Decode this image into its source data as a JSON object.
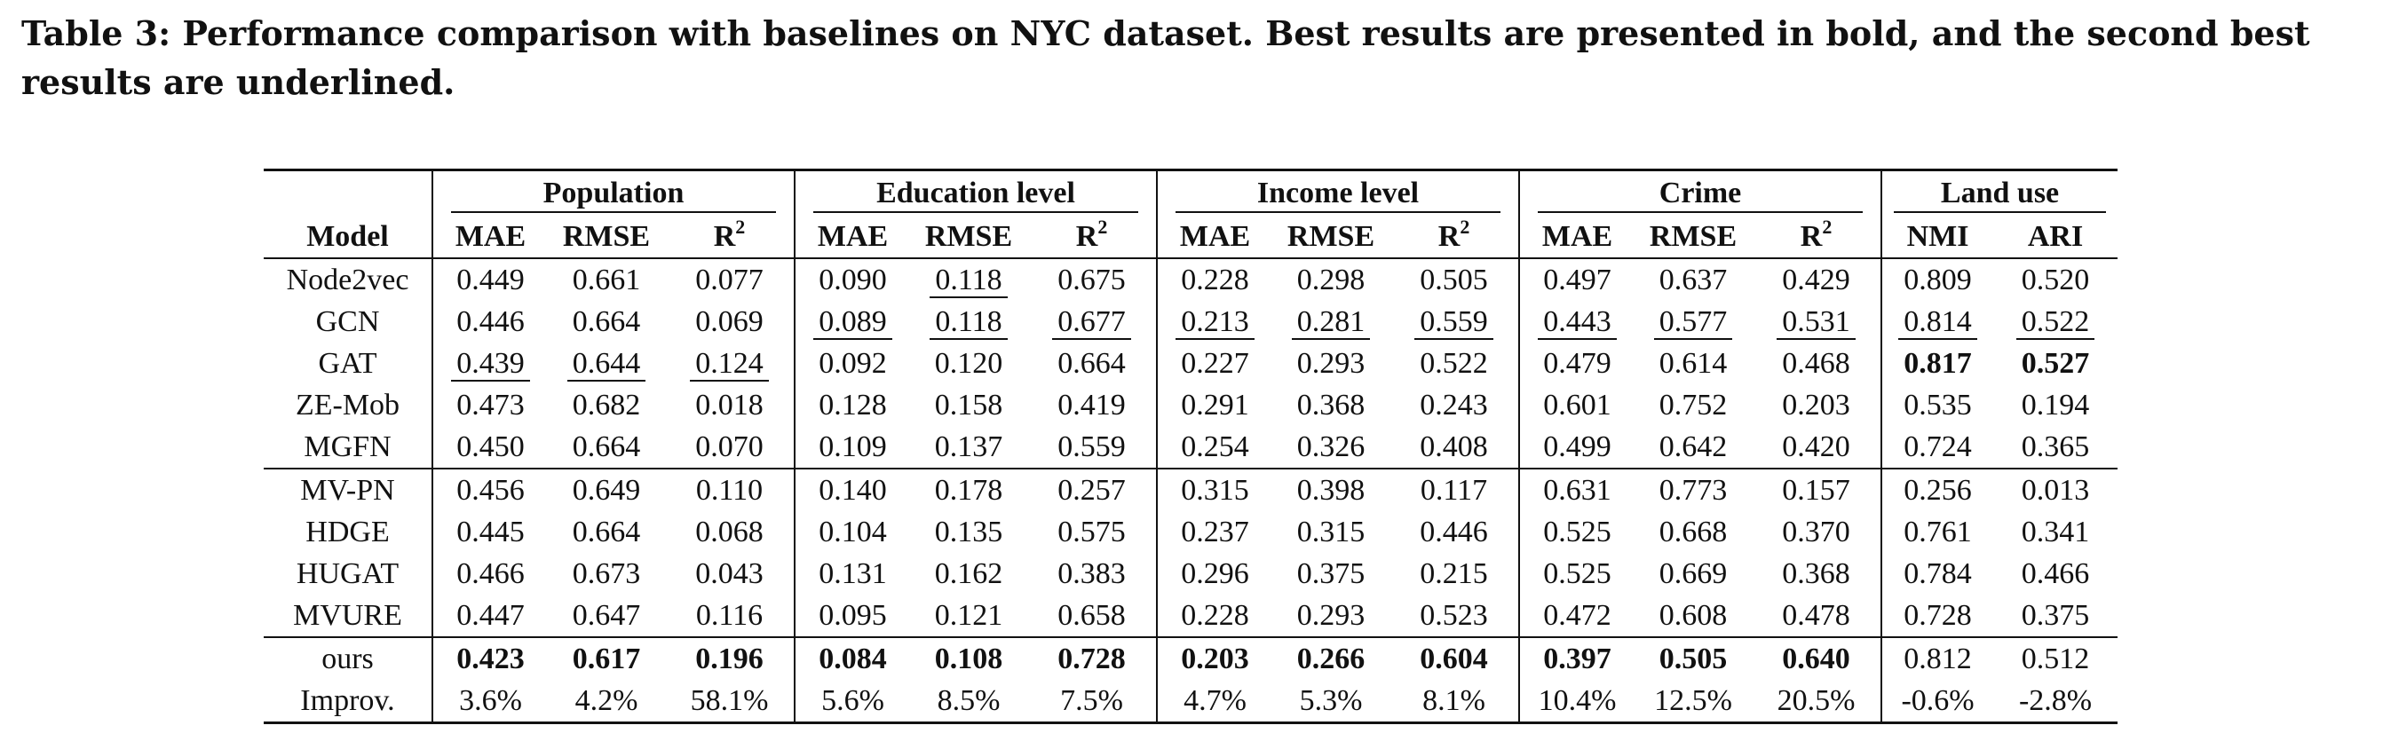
{
  "caption": "Table 3: Performance comparison with baselines on NYC dataset. Best results are presented in bold, and the second best results are underlined.",
  "table": {
    "model_header": "Model",
    "groups": [
      {
        "name": "Population",
        "metrics": [
          "MAE",
          "RMSE",
          "R"
        ]
      },
      {
        "name": "Education level",
        "metrics": [
          "MAE",
          "RMSE",
          "R"
        ]
      },
      {
        "name": "Income level",
        "metrics": [
          "MAE",
          "RMSE",
          "R"
        ]
      },
      {
        "name": "Crime",
        "metrics": [
          "MAE",
          "RMSE",
          "R"
        ]
      },
      {
        "name": "Land use",
        "metrics": [
          "NMI",
          "ARI"
        ]
      }
    ],
    "r_superscript": "2",
    "rows": [
      {
        "model": "Node2vec",
        "values": [
          "0.449",
          "0.661",
          "0.077",
          "0.090",
          "0.118",
          "0.675",
          "0.228",
          "0.298",
          "0.505",
          "0.497",
          "0.637",
          "0.429",
          "0.809",
          "0.520"
        ],
        "bold": [],
        "underline": [
          4
        ]
      },
      {
        "model": "GCN",
        "values": [
          "0.446",
          "0.664",
          "0.069",
          "0.089",
          "0.118",
          "0.677",
          "0.213",
          "0.281",
          "0.559",
          "0.443",
          "0.577",
          "0.531",
          "0.814",
          "0.522"
        ],
        "bold": [],
        "underline": [
          3,
          4,
          5,
          6,
          7,
          8,
          9,
          10,
          11,
          12,
          13
        ]
      },
      {
        "model": "GAT",
        "values": [
          "0.439",
          "0.644",
          "0.124",
          "0.092",
          "0.120",
          "0.664",
          "0.227",
          "0.293",
          "0.522",
          "0.479",
          "0.614",
          "0.468",
          "0.817",
          "0.527"
        ],
        "bold": [
          12,
          13
        ],
        "underline": [
          0,
          1,
          2
        ]
      },
      {
        "model": "ZE-Mob",
        "values": [
          "0.473",
          "0.682",
          "0.018",
          "0.128",
          "0.158",
          "0.419",
          "0.291",
          "0.368",
          "0.243",
          "0.601",
          "0.752",
          "0.203",
          "0.535",
          "0.194"
        ],
        "bold": [],
        "underline": []
      },
      {
        "model": "MGFN",
        "values": [
          "0.450",
          "0.664",
          "0.070",
          "0.109",
          "0.137",
          "0.559",
          "0.254",
          "0.326",
          "0.408",
          "0.499",
          "0.642",
          "0.420",
          "0.724",
          "0.365"
        ],
        "bold": [],
        "underline": []
      },
      {
        "model": "MV-PN",
        "values": [
          "0.456",
          "0.649",
          "0.110",
          "0.140",
          "0.178",
          "0.257",
          "0.315",
          "0.398",
          "0.117",
          "0.631",
          "0.773",
          "0.157",
          "0.256",
          "0.013"
        ],
        "bold": [],
        "underline": []
      },
      {
        "model": "HDGE",
        "values": [
          "0.445",
          "0.664",
          "0.068",
          "0.104",
          "0.135",
          "0.575",
          "0.237",
          "0.315",
          "0.446",
          "0.525",
          "0.668",
          "0.370",
          "0.761",
          "0.341"
        ],
        "bold": [],
        "underline": []
      },
      {
        "model": "HUGAT",
        "values": [
          "0.466",
          "0.673",
          "0.043",
          "0.131",
          "0.162",
          "0.383",
          "0.296",
          "0.375",
          "0.215",
          "0.525",
          "0.669",
          "0.368",
          "0.784",
          "0.466"
        ],
        "bold": [],
        "underline": []
      },
      {
        "model": "MVURE",
        "values": [
          "0.447",
          "0.647",
          "0.116",
          "0.095",
          "0.121",
          "0.658",
          "0.228",
          "0.293",
          "0.523",
          "0.472",
          "0.608",
          "0.478",
          "0.728",
          "0.375"
        ],
        "bold": [],
        "underline": []
      },
      {
        "model": "ours",
        "values": [
          "0.423",
          "0.617",
          "0.196",
          "0.084",
          "0.108",
          "0.728",
          "0.203",
          "0.266",
          "0.604",
          "0.397",
          "0.505",
          "0.640",
          "0.812",
          "0.512"
        ],
        "bold": [
          0,
          1,
          2,
          3,
          4,
          5,
          6,
          7,
          8,
          9,
          10,
          11
        ],
        "underline": []
      },
      {
        "model": "Improv.",
        "values": [
          "3.6%",
          "4.2%",
          "58.1%",
          "5.6%",
          "8.5%",
          "7.5%",
          "4.7%",
          "5.3%",
          "8.1%",
          "10.4%",
          "12.5%",
          "20.5%",
          "-0.6%",
          "-2.8%"
        ],
        "bold": [],
        "underline": []
      }
    ]
  }
}
